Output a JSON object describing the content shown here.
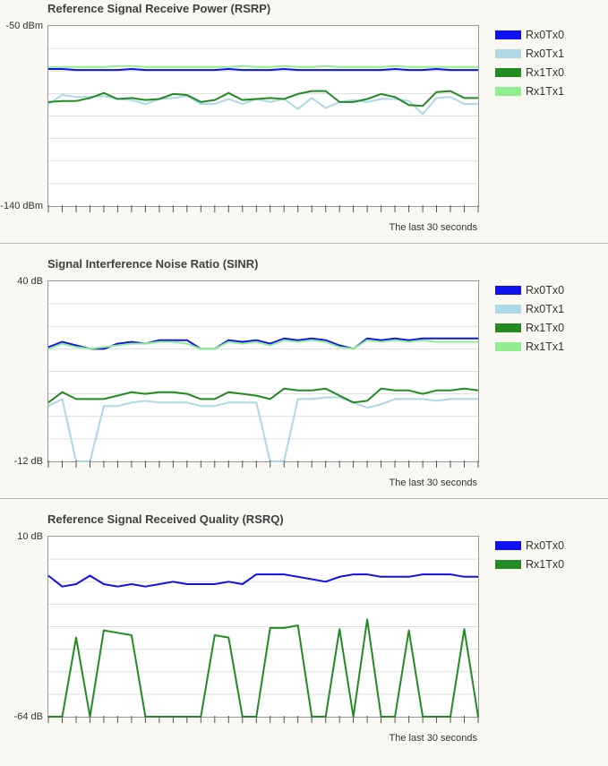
{
  "caption": "The last 30 seconds",
  "chart_data": [
    {
      "type": "line",
      "title": "Reference Signal Receive Power (RSRP)",
      "ymax_label": "-50 dBm",
      "ymin_label": "-140 dBm",
      "ylim": [
        -140,
        -50
      ],
      "x": [
        0,
        1,
        2,
        3,
        4,
        5,
        6,
        7,
        8,
        9,
        10,
        11,
        12,
        13,
        14,
        15,
        16,
        17,
        18,
        19,
        20,
        21,
        22,
        23,
        24,
        25,
        26,
        27,
        28,
        29,
        30,
        31
      ],
      "series": [
        {
          "name": "Rx0Tx0",
          "color": "#1010f0",
          "values": [
            -71.5,
            -71.5,
            -72,
            -72,
            -72,
            -72,
            -71.5,
            -72,
            -72,
            -72,
            -72,
            -72,
            -72,
            -71.5,
            -72,
            -72,
            -72,
            -71.5,
            -72,
            -72,
            -72,
            -72,
            -72,
            -72,
            -72,
            -71.5,
            -72,
            -72,
            -71.5,
            -72,
            -72,
            -72
          ]
        },
        {
          "name": "Rx0Tx1",
          "color": "#add8e6",
          "values": [
            -89,
            -84.5,
            -85.5,
            -85.5,
            -85,
            -86.5,
            -87,
            -89,
            -86.5,
            -86,
            -85,
            -89,
            -89,
            -86.5,
            -89,
            -86.5,
            -88,
            -86.5,
            -91.5,
            -86,
            -91,
            -88,
            -87,
            -88,
            -86.5,
            -86.5,
            -87.5,
            -94,
            -86,
            -85.5,
            -89,
            -89
          ]
        },
        {
          "name": "Rx1Tx0",
          "color": "#228b22",
          "values": [
            -88,
            -87.5,
            -87.5,
            -86,
            -83.5,
            -86.5,
            -86,
            -87,
            -86.5,
            -84,
            -84.5,
            -88,
            -87,
            -83.5,
            -87,
            -86.5,
            -86,
            -86.5,
            -84,
            -82.5,
            -82.5,
            -88,
            -88,
            -86.5,
            -84,
            -85.5,
            -89.5,
            -90,
            -83,
            -82.5,
            -86,
            -86
          ]
        },
        {
          "name": "Rx1Tx1",
          "color": "#90ee90",
          "values": [
            -70.5,
            -70.5,
            -70.5,
            -70.5,
            -70.5,
            -70,
            -70,
            -70.5,
            -70.5,
            -70.5,
            -70.5,
            -70.5,
            -70.5,
            -70.5,
            -70,
            -70.5,
            -70.5,
            -70,
            -70.5,
            -70.5,
            -70,
            -70.5,
            -70.5,
            -70.5,
            -70.5,
            -70,
            -70.5,
            -70.5,
            -70.5,
            -70.5,
            -70.5,
            -70.5
          ]
        }
      ]
    },
    {
      "type": "line",
      "title": "Signal Interference Noise Ratio (SINR)",
      "ymax_label": "40 dB",
      "ymin_label": "-12 dB",
      "ylim": [
        -12,
        40
      ],
      "x": [
        0,
        1,
        2,
        3,
        4,
        5,
        6,
        7,
        8,
        9,
        10,
        11,
        12,
        13,
        14,
        15,
        16,
        17,
        18,
        19,
        20,
        21,
        22,
        23,
        24,
        25,
        26,
        27,
        28,
        29,
        30,
        31
      ],
      "series": [
        {
          "name": "Rx0Tx0",
          "color": "#1010f0",
          "values": [
            21,
            22.5,
            21.5,
            20.5,
            20.5,
            22,
            22.5,
            22,
            23,
            23,
            23,
            20.5,
            20.5,
            23,
            22.5,
            23,
            22,
            23.5,
            23,
            23.5,
            23,
            21.5,
            20.5,
            23.5,
            23,
            23.5,
            23,
            23.5,
            23.5,
            23.5,
            23.5,
            23.5
          ]
        },
        {
          "name": "Rx0Tx1",
          "color": "#add8e6",
          "values": [
            4,
            6,
            -12,
            -12,
            4,
            4,
            5,
            5.5,
            5,
            5,
            5,
            4,
            4,
            5,
            5,
            5,
            -12,
            -12,
            6,
            6,
            6.5,
            6.5,
            5,
            3.5,
            4.5,
            6,
            6,
            6,
            5.5,
            6,
            6,
            6
          ]
        },
        {
          "name": "Rx1Tx0",
          "color": "#228b22",
          "values": [
            5,
            8,
            6,
            6,
            6,
            7,
            8,
            7.5,
            8,
            8,
            7.5,
            6,
            6,
            8,
            7.5,
            7,
            6,
            9,
            8.5,
            8.5,
            9,
            7,
            5,
            5.5,
            9,
            8.5,
            8.5,
            7.5,
            8.5,
            8.5,
            9,
            8.5
          ]
        },
        {
          "name": "Rx1Tx1",
          "color": "#90ee90",
          "values": [
            20.5,
            22,
            21,
            20.5,
            21,
            21.5,
            22,
            22,
            22.5,
            22.5,
            22,
            20.5,
            20.5,
            22.5,
            22,
            22.5,
            21.5,
            23,
            22.5,
            23,
            22.5,
            21,
            20.5,
            23,
            22.5,
            23,
            22.5,
            23,
            22.5,
            22.5,
            22.5,
            22.5
          ]
        }
      ]
    },
    {
      "type": "line",
      "title": "Reference Signal Received Quality (RSRQ)",
      "ymax_label": "10 dB",
      "ymin_label": "-64 dB",
      "ylim": [
        -64,
        10
      ],
      "x": [
        0,
        1,
        2,
        3,
        4,
        5,
        6,
        7,
        8,
        9,
        10,
        11,
        12,
        13,
        14,
        15,
        16,
        17,
        18,
        19,
        20,
        21,
        22,
        23,
        24,
        25,
        26,
        27,
        28,
        29,
        30,
        31
      ],
      "series": [
        {
          "name": "Rx0Tx0",
          "color": "#1010f0",
          "values": [
            -6,
            -10.5,
            -9.5,
            -6,
            -9.5,
            -10.5,
            -9.5,
            -10.5,
            -9.5,
            -8.5,
            -9.5,
            -9.5,
            -9.5,
            -8.5,
            -9.5,
            -5.5,
            -5.5,
            -5.5,
            -6.5,
            -7.5,
            -8.5,
            -6.5,
            -5.5,
            -5.5,
            -6.5,
            -6.5,
            -6.5,
            -5.5,
            -5.5,
            -5.5,
            -6.5,
            -6.5
          ]
        },
        {
          "name": "Rx1Tx0",
          "color": "#228b22",
          "values": [
            -64,
            -64,
            -31.5,
            -64,
            -28.5,
            -29.5,
            -30.5,
            -64,
            -64,
            -64,
            -64,
            -64,
            -30.5,
            -31.5,
            -64,
            -64,
            -27.5,
            -27.5,
            -26.5,
            -64,
            -64,
            -28,
            -64,
            -24,
            -64,
            -64,
            -28.5,
            -64,
            -64,
            -64,
            -28,
            -64
          ]
        }
      ]
    }
  ]
}
